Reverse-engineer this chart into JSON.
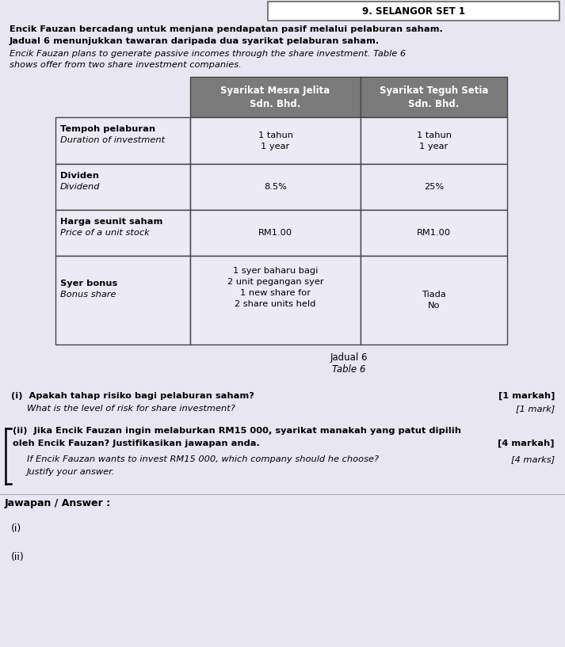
{
  "page_bg": "#e8e6f0",
  "header_text": "9. SELANGOR SET 1",
  "para1_line1": "Encik Fauzan bercadang untuk menjana pendapatan pasif melalui pelaburan saham.",
  "para1_line2": "Jadual 6 menunjukkan tawaran daripada dua syarikat pelaburan saham.",
  "para2_line1": "Encik Fauzan plans to generate passive incomes through the share investment. Table 6",
  "para2_line2": "shows offer from two share investment companies.",
  "table_caption1": "Jadual 6",
  "table_caption2": "Table 6",
  "col_header1": "Syarikat Mesra Jelita\nSdn. Bhd.",
  "col_header2": "Syarikat Teguh Setia\nSdn. Bhd.",
  "row1_label_bm": "Tempoh pelaburan",
  "row1_label_en": "Duration of investment",
  "row1_col1": "1 tahun\n1 year",
  "row1_col2": "1 tahun\n1 year",
  "row2_label_bm": "Dividen",
  "row2_label_en": "Dividend",
  "row2_col1": "8.5%",
  "row2_col2": "25%",
  "row3_label_bm": "Harga seunit saham",
  "row3_label_en": "Price of a unit stock",
  "row3_col1": "RM1.00",
  "row3_col2": "RM1.00",
  "row4_label_bm": "Syer bonus",
  "row4_label_en": "Bonus share",
  "row4_col1": "1 syer baharu bagi\n2 unit pegangan syer\n1 new share for\n2 share units held",
  "row4_col2": "Tiada\nNo",
  "q_i_bm": "(i)  Apakah tahap risiko bagi pelaburan saham?",
  "q_i_mark_bm": "[1 markah]",
  "q_i_en": "What is the level of risk for share investment?",
  "q_i_mark_en": "[1 mark]",
  "q_ii_bm_line1": "(ii)  Jika Encik Fauzan ingin melaburkan RM15 000, syarikat manakah yang patut dipilih",
  "q_ii_bm_line2": "oleh Encik Fauzan? Justifikasikan jawapan anda.",
  "q_ii_mark_bm": "[4 markah]",
  "q_ii_en_line1": "If Encik Fauzan wants to invest RM15 000, which company should he choose?",
  "q_ii_mark_en": "[4 marks]",
  "q_ii_en_line2": "Justify your answer.",
  "answer_label": "Jawapan / Answer :",
  "ans_i": "(i)",
  "ans_ii": "(ii)",
  "table_header_bg": "#7a7a7a",
  "table_header_text": "#ffffff",
  "table_border": "#444444",
  "table_cell_bg": "#eceaf4"
}
